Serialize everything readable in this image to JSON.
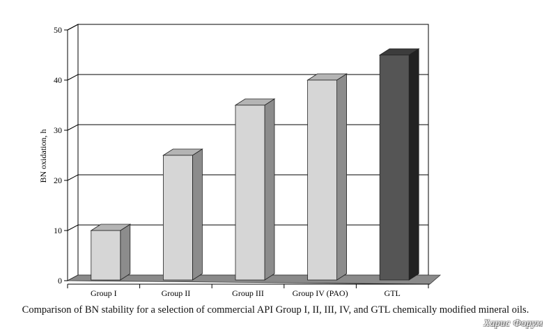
{
  "caption": "Comparison of BN stability for a selection of commercial API Group I, II, III, IV, and GTL chemically modified mineral oils.",
  "watermark": "Харис Форум",
  "chart_data": {
    "type": "bar",
    "title": "",
    "xlabel": "",
    "ylabel": "BN oxidation, h",
    "categories": [
      "Group I",
      "Group II",
      "Group III",
      "Group IV (PAO)",
      "GTL"
    ],
    "values": [
      10,
      25,
      35,
      40,
      45
    ],
    "ylim": [
      0,
      50
    ],
    "yticks": [
      0,
      10,
      20,
      30,
      40,
      50
    ],
    "grid": true,
    "legend": "none",
    "colors": {
      "bar_front": "#d6d6d6",
      "bar_side": "#8c8c8c",
      "bar_top": "#b4b4b4",
      "highlight_front": "#555555",
      "highlight_side": "#222222",
      "highlight_top": "#3c3c3c",
      "floor": "#8a8a8a",
      "grid": "#000000"
    },
    "highlight_index": 4
  }
}
